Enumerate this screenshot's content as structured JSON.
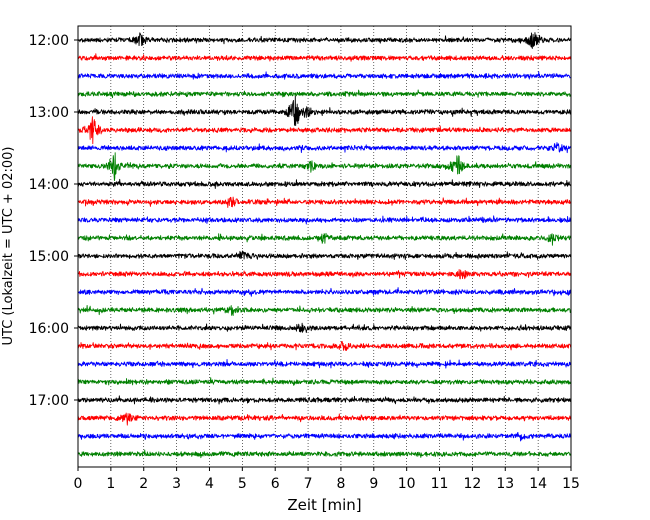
{
  "chart_data": {
    "type": "line",
    "title": "",
    "xlabel": "Zeit  [min]",
    "ylabel": "UTC (Lokalzeit = UTC + 02:00)",
    "xlim": [
      0,
      15
    ],
    "x_ticks": [
      "0",
      "1",
      "2",
      "3",
      "4",
      "5",
      "6",
      "7",
      "8",
      "9",
      "10",
      "11",
      "12",
      "13",
      "14",
      "15"
    ],
    "y_ticks": [
      "12:00",
      "13:00",
      "14:00",
      "15:00",
      "16:00",
      "17:00"
    ],
    "grid": "vertical dotted lines at each minute",
    "trace_interval_min": 15,
    "traces": [
      {
        "start": "12:00",
        "color": "#000000",
        "events": [
          [
            1.9,
            0.8
          ],
          [
            13.85,
            1.5
          ]
        ]
      },
      {
        "start": "12:15",
        "color": "#ff0000",
        "events": []
      },
      {
        "start": "12:30",
        "color": "#0000ff",
        "events": []
      },
      {
        "start": "12:45",
        "color": "#008000",
        "events": []
      },
      {
        "start": "13:00",
        "color": "#000000",
        "events": [
          [
            6.6,
            2.6
          ],
          [
            7.0,
            0.6
          ]
        ]
      },
      {
        "start": "13:15",
        "color": "#ff0000",
        "events": [
          [
            0.45,
            1.9
          ]
        ]
      },
      {
        "start": "13:30",
        "color": "#0000ff",
        "events": [
          [
            14.6,
            0.5
          ]
        ]
      },
      {
        "start": "13:45",
        "color": "#008000",
        "events": [
          [
            1.1,
            1.8
          ],
          [
            11.55,
            1.6
          ],
          [
            7.1,
            0.6
          ]
        ]
      },
      {
        "start": "14:00",
        "color": "#000000",
        "events": []
      },
      {
        "start": "14:15",
        "color": "#ff0000",
        "events": [
          [
            4.7,
            0.6
          ]
        ]
      },
      {
        "start": "14:30",
        "color": "#0000ff",
        "events": []
      },
      {
        "start": "14:45",
        "color": "#008000",
        "events": [
          [
            7.5,
            0.5
          ],
          [
            14.4,
            0.5
          ]
        ]
      },
      {
        "start": "15:00",
        "color": "#000000",
        "events": [
          [
            5.0,
            0.6
          ]
        ]
      },
      {
        "start": "15:15",
        "color": "#ff0000",
        "events": [
          [
            11.7,
            0.8
          ]
        ]
      },
      {
        "start": "15:30",
        "color": "#0000ff",
        "events": []
      },
      {
        "start": "15:45",
        "color": "#008000",
        "events": [
          [
            4.7,
            0.6
          ]
        ]
      },
      {
        "start": "16:00",
        "color": "#000000",
        "events": [
          [
            6.8,
            0.6
          ]
        ]
      },
      {
        "start": "16:15",
        "color": "#ff0000",
        "events": [
          [
            8.1,
            0.6
          ]
        ]
      },
      {
        "start": "16:30",
        "color": "#0000ff",
        "events": []
      },
      {
        "start": "16:45",
        "color": "#008000",
        "events": []
      },
      {
        "start": "17:00",
        "color": "#000000",
        "events": []
      },
      {
        "start": "17:15",
        "color": "#ff0000",
        "events": [
          [
            1.5,
            0.8
          ]
        ]
      },
      {
        "start": "17:30",
        "color": "#0000ff",
        "events": [
          [
            13.5,
            0.5
          ]
        ]
      },
      {
        "start": "17:45",
        "color": "#008000",
        "events": []
      }
    ]
  }
}
